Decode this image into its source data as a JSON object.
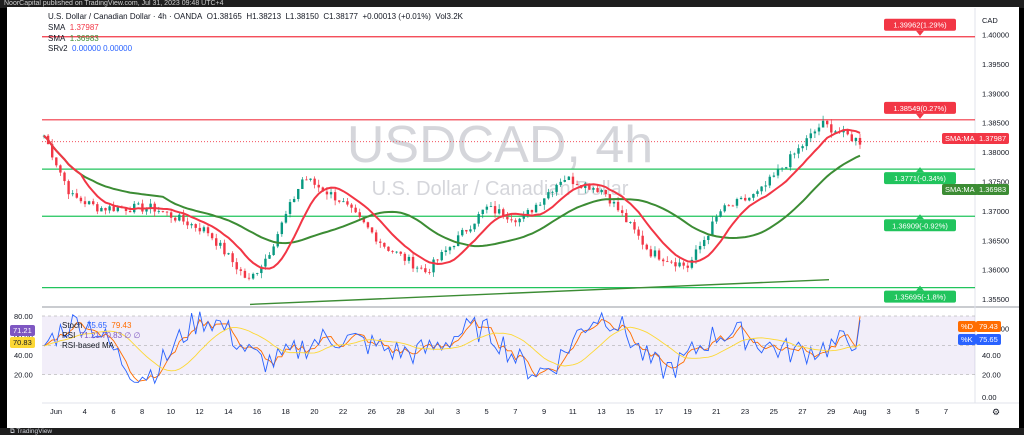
{
  "window": {
    "caption": "NoorCapital published on TradingView.com, Jul 31, 2023 09:48 UTC+4"
  },
  "header": {
    "symbol": "U.S. Dollar / Canadian Dollar · 4h · OANDA",
    "open": "O1.38165",
    "high": "H1.38213",
    "low": "L1.38150",
    "close": "C1.38177",
    "change": "+0.00013 (+0.01%)",
    "volume": "Vol3.2K",
    "sma1_label": "SMA",
    "sma1_value": "1.37987",
    "sma2_label": "SMA",
    "sma2_value": "1.36983",
    "srv2_label": "SRv2",
    "srv2_values": "0.00000  0.00000"
  },
  "watermark": {
    "ticker": "USDCAD, 4h",
    "name": "U.S. Dollar / Canadian Dollar"
  },
  "price_axis": {
    "currency": "CAD",
    "ticks": [
      "1.40000",
      "1.39500",
      "1.39000",
      "1.38500",
      "1.38000",
      "1.37500",
      "1.37000",
      "1.36500",
      "1.36000",
      "1.35500",
      "1.35000"
    ]
  },
  "levels": [
    {
      "label": "1.39962(1.29%)",
      "price": 1.39962,
      "kind": "resistance"
    },
    {
      "label": "1.38549(0.27%)",
      "price": 1.38549,
      "kind": "resistance"
    },
    {
      "label": "1.3771(-0.34%)",
      "price": 1.3771,
      "kind": "support"
    },
    {
      "label": "1.36909(-0.92%)",
      "price": 1.36909,
      "kind": "support"
    },
    {
      "label": "1.35695(-1.8%)",
      "price": 1.35695,
      "kind": "support"
    }
  ],
  "axis_tags": {
    "sma_fast_label": "SMA:MA",
    "sma_fast_value": "1.37987",
    "sma_slow_label": "SMA:MA",
    "sma_slow_value": "1.36983",
    "d_label": "%D",
    "d_value": "79.43",
    "k_label": "%K",
    "k_value": "75.65"
  },
  "indicator": {
    "stoch_label": "Stoch",
    "stoch_k": "75.65",
    "stoch_d": "79.43",
    "rsi_label": "RSI",
    "rsi_values": "71.21  70.83  ∅  ∅",
    "rsi_ma_label": "RSI-based MA",
    "tag_rsi": "71.21",
    "tag_rsi_ma": "70.83",
    "ticks": [
      "80.00",
      "60.00",
      "40.00",
      "20.00"
    ],
    "right_ticks": [
      "60.00",
      "40.00",
      "20.00",
      "0.00"
    ]
  },
  "time_axis": [
    "Jun",
    "4",
    "6",
    "8",
    "10",
    "12",
    "14",
    "16",
    "18",
    "20",
    "22",
    "26",
    "28",
    "Jul",
    "3",
    "5",
    "7",
    "9",
    "11",
    "13",
    "15",
    "17",
    "19",
    "21",
    "23",
    "25",
    "27",
    "29",
    "Aug",
    "3",
    "5",
    "7"
  ],
  "colors": {
    "up": "#089981",
    "down": "#f23645",
    "sma_fast": "#f23645",
    "sma_slow": "#3c8c34",
    "level_red": "#f23645",
    "level_green": "#21c45d",
    "rsi_band": "#7e57c2",
    "stoch_k": "#2962ff",
    "stoch_d": "#ff6d00"
  },
  "footer": {
    "brand": "TradingView"
  }
}
